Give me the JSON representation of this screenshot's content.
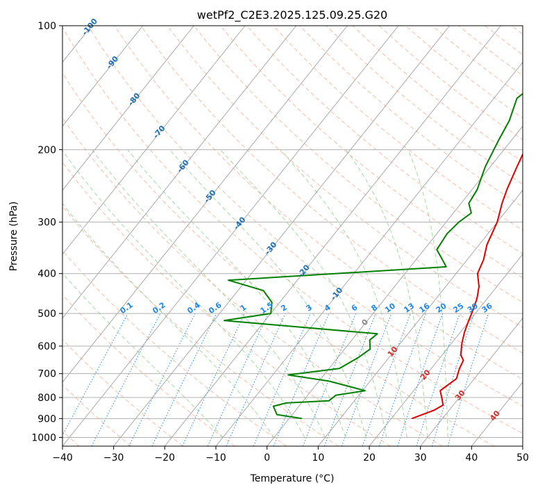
{
  "chart_data": {
    "type": "line",
    "title": "wetPf2_C2E3.2025.125.09.25.G20",
    "xlabel": "Temperature (°C)",
    "ylabel": "Pressure (hPa)",
    "xlim": [
      -40,
      50
    ],
    "ylim": [
      1050,
      100
    ],
    "y_scale": "log",
    "grid": true,
    "x_ticks": [
      -40,
      -30,
      -20,
      -10,
      0,
      10,
      20,
      30,
      40,
      50
    ],
    "y_ticks": [
      100,
      200,
      300,
      400,
      500,
      600,
      700,
      800,
      900,
      1000
    ],
    "colors": {
      "temperature": "#e00000",
      "dewpoint": "#008000",
      "isotherm": "#a0a0a0",
      "dry_adiabat": "#f5a78a",
      "moist_adiabat": "#8fcf8f",
      "mixing_ratio": "#1e88e5",
      "upper_label": "#1f6fb0",
      "lower_label": "#d32f2f",
      "background_curve": "#c8b896"
    },
    "series": [
      {
        "name": "",
        "color": "#e00000",
        "points": [
          [
            24.0,
            900
          ],
          [
            27.0,
            860
          ],
          [
            28.0,
            835
          ],
          [
            27.0,
            810
          ],
          [
            25.2,
            770
          ],
          [
            26.5,
            720
          ],
          [
            25.5,
            680
          ],
          [
            25.0,
            650
          ],
          [
            23.6,
            630
          ],
          [
            22.0,
            590
          ],
          [
            20.8,
            555
          ],
          [
            19.8,
            520
          ],
          [
            19.0,
            490
          ],
          [
            18.0,
            460
          ],
          [
            16.5,
            430
          ],
          [
            14.2,
            400
          ],
          [
            13.2,
            370
          ],
          [
            11.5,
            340
          ],
          [
            10.0,
            300
          ],
          [
            8.0,
            270
          ],
          [
            6.8,
            250
          ],
          [
            5.2,
            220
          ],
          [
            3.5,
            190
          ],
          [
            1.8,
            170
          ],
          [
            1.3,
            150
          ],
          [
            0.2,
            130
          ],
          [
            0.6,
            120
          ],
          [
            1.8,
            112
          ],
          [
            4.3,
            100
          ]
        ]
      },
      {
        "name": "",
        "color": "#008000",
        "points": [
          [
            2.5,
            900
          ],
          [
            -3.0,
            880
          ],
          [
            -5.0,
            840
          ],
          [
            -3.0,
            825
          ],
          [
            5.0,
            815
          ],
          [
            5.5,
            790
          ],
          [
            10.5,
            770
          ],
          [
            2.0,
            730
          ],
          [
            -7.0,
            705
          ],
          [
            2.0,
            680
          ],
          [
            3.0,
            660
          ],
          [
            4.0,
            640
          ],
          [
            5.0,
            610
          ],
          [
            3.5,
            580
          ],
          [
            4.0,
            560
          ],
          [
            -28.0,
            520
          ],
          [
            -20.0,
            500
          ],
          [
            -21.5,
            470
          ],
          [
            -25.0,
            440
          ],
          [
            -33.5,
            415
          ],
          [
            7.0,
            385
          ],
          [
            4.5,
            365
          ],
          [
            2.5,
            350
          ],
          [
            2.0,
            320
          ],
          [
            2.5,
            300
          ],
          [
            3.5,
            285
          ],
          [
            1.5,
            270
          ],
          [
            1.0,
            250
          ],
          [
            -1.0,
            220
          ],
          [
            -2.5,
            190
          ],
          [
            -3.5,
            170
          ],
          [
            -5.5,
            150
          ],
          [
            -3.0,
            130
          ],
          [
            0.5,
            120
          ],
          [
            1.5,
            112
          ],
          [
            1.5,
            100
          ]
        ]
      }
    ],
    "isotherm_labels": [
      "-100",
      "-90",
      "-80",
      "-70",
      "-60",
      "-50",
      "-40",
      "-30",
      "-20",
      "-10",
      "0",
      "10",
      "20",
      "30",
      "40"
    ],
    "mixing_ratio_labels": [
      "0.1",
      "0.2",
      "0.4",
      "0.6",
      "1",
      "1.5",
      "2",
      "3",
      "4",
      "6",
      "8",
      "10",
      "13",
      "16",
      "20",
      "25",
      "30",
      "36"
    ]
  }
}
